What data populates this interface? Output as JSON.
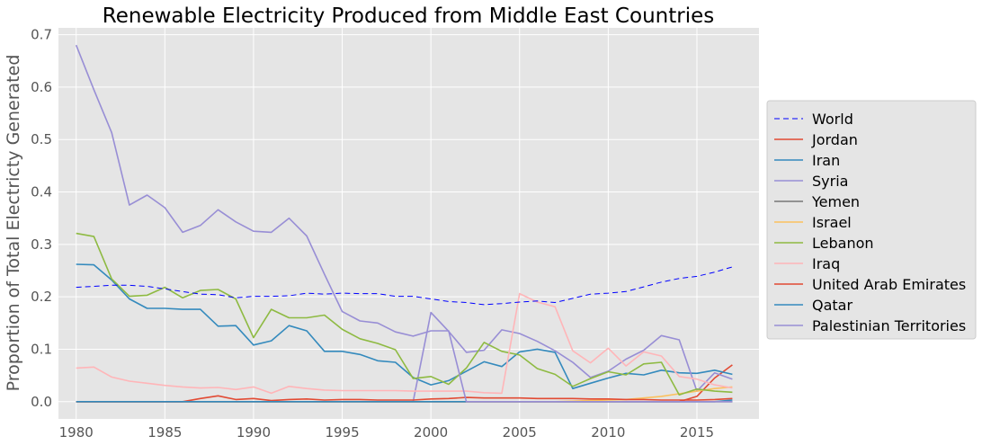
{
  "chart_data": {
    "type": "line",
    "title": "Renewable Electricity Produced from Middle East Countries",
    "xlabel": "",
    "ylabel": "Proportion of Total Electricty Generated",
    "xlim": [
      1979,
      2018.5
    ],
    "ylim": [
      -0.033,
      0.713
    ],
    "xticks": [
      1980,
      1985,
      1990,
      1995,
      2000,
      2005,
      2010,
      2015
    ],
    "yticks": [
      0.0,
      0.1,
      0.2,
      0.3,
      0.4,
      0.5,
      0.6,
      0.7
    ],
    "ytick_labels": [
      "0.0",
      "0.1",
      "0.2",
      "0.3",
      "0.4",
      "0.5",
      "0.6",
      "0.7"
    ],
    "grid": true,
    "legend_position": "center-right-outside",
    "x": [
      1980,
      1981,
      1982,
      1983,
      1984,
      1985,
      1986,
      1987,
      1988,
      1989,
      1990,
      1991,
      1992,
      1993,
      1994,
      1995,
      1996,
      1997,
      1998,
      1999,
      2000,
      2001,
      2002,
      2003,
      2004,
      2005,
      2006,
      2007,
      2008,
      2009,
      2010,
      2011,
      2012,
      2013,
      2014,
      2015,
      2016,
      2017
    ],
    "series": [
      {
        "name": "World",
        "color": "#0000ff",
        "dashed": true,
        "values": [
          0.218,
          0.22,
          0.222,
          0.222,
          0.22,
          0.215,
          0.21,
          0.205,
          0.204,
          0.198,
          0.201,
          0.201,
          0.202,
          0.207,
          0.205,
          0.207,
          0.206,
          0.206,
          0.201,
          0.201,
          0.196,
          0.191,
          0.189,
          0.185,
          0.187,
          0.19,
          0.192,
          0.189,
          0.197,
          0.205,
          0.207,
          0.21,
          0.219,
          0.228,
          0.235,
          0.239,
          0.247,
          0.257
        ]
      },
      {
        "name": "Jordan",
        "color": "#e24a33",
        "values": [
          0.0,
          0.0,
          0.0,
          0.0,
          0.0,
          0.0,
          0.0,
          0.0,
          0.0,
          0.0,
          0.0,
          0.0,
          0.0,
          0.0,
          0.0,
          0.0,
          0.0,
          0.0,
          0.0,
          0.0,
          0.0,
          0.0,
          0.0,
          0.0,
          0.0,
          0.0,
          0.0,
          0.0,
          0.0,
          0.0,
          0.0,
          0.0,
          0.0,
          0.0,
          0.0,
          0.01,
          0.045,
          0.07
        ]
      },
      {
        "name": "Iran",
        "color": "#348abd",
        "values": [
          0.262,
          0.261,
          0.232,
          0.196,
          0.178,
          0.178,
          0.176,
          0.176,
          0.144,
          0.145,
          0.108,
          0.116,
          0.145,
          0.135,
          0.096,
          0.096,
          0.09,
          0.078,
          0.075,
          0.046,
          0.032,
          0.04,
          0.058,
          0.076,
          0.067,
          0.095,
          0.1,
          0.094,
          0.025,
          0.035,
          0.045,
          0.054,
          0.051,
          0.06,
          0.055,
          0.054,
          0.06,
          0.052
        ]
      },
      {
        "name": "Syria",
        "color": "#988ed5",
        "values": [
          0.0,
          0.0,
          0.0,
          0.0,
          0.0,
          0.0,
          0.0,
          0.0,
          0.0,
          0.0,
          0.0,
          0.0,
          0.0,
          0.0,
          0.0,
          0.0,
          0.0,
          0.0,
          0.0,
          0.0,
          0.17,
          0.134,
          0.094,
          0.098,
          0.137,
          0.13,
          0.115,
          0.097,
          0.075,
          0.046,
          0.058,
          0.081,
          0.098,
          0.126,
          0.118,
          0.02,
          0.055,
          0.043
        ]
      },
      {
        "name": "Yemen",
        "color": "#777777",
        "values": [
          0.0,
          0.0,
          0.0,
          0.0,
          0.0,
          0.0,
          0.0,
          0.0,
          0.0,
          0.0,
          0.0,
          0.0,
          0.0,
          0.0,
          0.0,
          0.0,
          0.0,
          0.0,
          0.0,
          0.0,
          0.0,
          0.0,
          0.0,
          0.0,
          0.0,
          0.0,
          0.0,
          0.0,
          0.0,
          0.0,
          0.0,
          0.0,
          0.0,
          0.0,
          0.0,
          0.0,
          0.0,
          0.0
        ]
      },
      {
        "name": "Israel",
        "color": "#fbc15e",
        "values": [
          0.0,
          0.0,
          0.0,
          0.0,
          0.0,
          0.0,
          0.0,
          0.0,
          0.0,
          0.0,
          0.0,
          0.0,
          0.0,
          0.0,
          0.0,
          0.0,
          0.0,
          0.0,
          0.0,
          0.0,
          0.0,
          0.0,
          0.0,
          0.0,
          0.0,
          0.0,
          0.0,
          0.0,
          0.001,
          0.002,
          0.003,
          0.004,
          0.007,
          0.01,
          0.015,
          0.02,
          0.025,
          0.028
        ]
      },
      {
        "name": "Lebanon",
        "color": "#8eba42",
        "values": [
          0.321,
          0.315,
          0.234,
          0.201,
          0.203,
          0.218,
          0.198,
          0.212,
          0.214,
          0.196,
          0.122,
          0.176,
          0.16,
          0.16,
          0.165,
          0.138,
          0.12,
          0.111,
          0.099,
          0.044,
          0.048,
          0.033,
          0.064,
          0.113,
          0.096,
          0.089,
          0.063,
          0.052,
          0.029,
          0.044,
          0.057,
          0.051,
          0.072,
          0.075,
          0.013,
          0.024,
          0.02,
          0.018
        ]
      },
      {
        "name": "Iraq",
        "color": "#ffb5b8",
        "values": [
          0.064,
          0.066,
          0.047,
          0.039,
          0.035,
          0.031,
          0.028,
          0.026,
          0.027,
          0.023,
          0.028,
          0.016,
          0.029,
          0.025,
          0.022,
          0.021,
          0.021,
          0.021,
          0.021,
          0.02,
          0.02,
          0.02,
          0.02,
          0.017,
          0.016,
          0.206,
          0.19,
          0.181,
          0.097,
          0.074,
          0.102,
          0.068,
          0.095,
          0.087,
          0.048,
          0.043,
          0.032,
          0.026
        ]
      },
      {
        "name": "United Arab Emirates",
        "color": "#e24a33",
        "values": [
          0.0,
          0.0,
          0.0,
          0.0,
          0.0,
          0.0,
          0.0,
          0.006,
          0.011,
          0.004,
          0.006,
          0.002,
          0.004,
          0.005,
          0.003,
          0.004,
          0.004,
          0.003,
          0.003,
          0.003,
          0.005,
          0.006,
          0.008,
          0.007,
          0.007,
          0.007,
          0.006,
          0.006,
          0.006,
          0.005,
          0.005,
          0.004,
          0.004,
          0.003,
          0.003,
          0.003,
          0.004,
          0.006
        ]
      },
      {
        "name": "Qatar",
        "color": "#348abd",
        "values": [
          0.0,
          0.0,
          0.0,
          0.0,
          0.0,
          0.0,
          0.0,
          0.0,
          0.0,
          0.0,
          0.0,
          0.0,
          0.0,
          0.0,
          0.0,
          0.0,
          0.0,
          0.0,
          0.0,
          0.0,
          0.0,
          0.0,
          0.0,
          0.0,
          0.0,
          0.0,
          0.0,
          0.0,
          0.0,
          0.0,
          0.0,
          0.0,
          0.0,
          0.0,
          0.0,
          0.0,
          0.0,
          0.003
        ]
      },
      {
        "name": "Palestinian Territories",
        "color": "#988ed5",
        "values": [
          0.68,
          0.595,
          0.513,
          0.375,
          0.394,
          0.37,
          0.323,
          0.336,
          0.366,
          0.343,
          0.325,
          0.323,
          0.35,
          0.316,
          0.243,
          0.172,
          0.154,
          0.15,
          0.133,
          0.125,
          0.135,
          0.135,
          0.0,
          0.0,
          0.0,
          0.0,
          0.0,
          0.0,
          0.0,
          0.0,
          0.0,
          0.0,
          0.0,
          0.0,
          0.0,
          0.0,
          0.0,
          0.0
        ]
      }
    ]
  }
}
